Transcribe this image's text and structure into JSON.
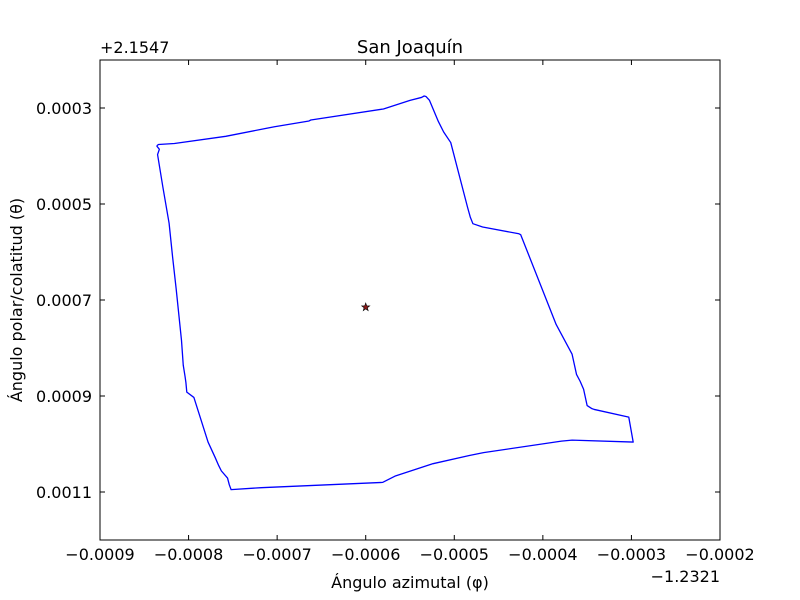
{
  "chart_data": {
    "type": "line",
    "title": "San Joaquín",
    "xlabel": "Ángulo azimutal (φ)",
    "ylabel": "Ángulo polar/colatitud (θ)",
    "x_offset_label": "−1.2321",
    "y_offset_label": "+2.1547",
    "xlim": [
      -0.0009,
      -0.0002
    ],
    "ylim": [
      0.0012,
      0.0002
    ],
    "y_inverted": true,
    "x_ticks": [
      -0.0009,
      -0.0008,
      -0.0007,
      -0.0006,
      -0.0005,
      -0.0004,
      -0.0003,
      -0.0002
    ],
    "x_tick_labels": [
      "−0.0009",
      "−0.0008",
      "−0.0007",
      "−0.0006",
      "−0.0005",
      "−0.0004",
      "−0.0003",
      "−0.0002"
    ],
    "y_ticks": [
      0.0003,
      0.0005,
      0.0007,
      0.0009,
      0.0011
    ],
    "y_tick_labels": [
      "0.0003",
      "0.0005",
      "0.0007",
      "0.0009",
      "0.0011"
    ],
    "grid": false,
    "colors": {
      "boundary": "#0000ff",
      "marker": "#8b1a1a"
    },
    "series": [
      {
        "marker": "line",
        "x": [
          -0.000836,
          -0.000834,
          -0.000816,
          -0.000758,
          -0.000703,
          -0.000664,
          -0.000662,
          -0.00058,
          -0.00055,
          -0.000537,
          -0.000534,
          -0.000532,
          -0.000531,
          -0.000528,
          -0.000518,
          -0.000512,
          -0.000504,
          -0.000485,
          -0.000482,
          -0.000479,
          -0.000468,
          -0.000427,
          -0.000425,
          -0.000385,
          -0.000367,
          -0.000362,
          -0.000358,
          -0.000354,
          -0.00035,
          -0.000345,
          -0.000342,
          -0.000303,
          -0.000298,
          -0.000367,
          -0.000379,
          -0.000467,
          -0.000483,
          -0.000524,
          -0.000567,
          -0.000581,
          -0.000718,
          -0.000752,
          -0.000754,
          -0.000756,
          -0.000763,
          -0.000766,
          -0.00077,
          -0.000778,
          -0.000794,
          -0.000802,
          -0.000803,
          -0.000804,
          -0.000806,
          -0.000808,
          -0.000814,
          -0.000818,
          -0.000822,
          -0.000829,
          -0.000835,
          -0.000833,
          -0.000836
        ],
        "y": [
          0.000379,
          0.000376,
          0.000374,
          0.000359,
          0.000339,
          0.000327,
          0.000325,
          0.000302,
          0.000284,
          0.000278,
          0.000275,
          0.000276,
          0.000278,
          0.000284,
          0.000328,
          0.00035,
          0.000372,
          0.000507,
          0.000527,
          0.000541,
          0.000548,
          0.000562,
          0.000564,
          0.000751,
          0.000813,
          0.000855,
          0.000869,
          0.000886,
          0.00092,
          0.000926,
          0.000928,
          0.000944,
          0.000996,
          0.000992,
          0.000994,
          0.001018,
          0.001024,
          0.001041,
          0.001067,
          0.00108,
          0.001091,
          0.001095,
          0.001085,
          0.001071,
          0.001056,
          0.001045,
          0.001028,
          0.000996,
          0.000903,
          0.000892,
          0.000872,
          0.000859,
          0.000836,
          0.000784,
          0.000677,
          0.000611,
          0.00054,
          0.000465,
          0.000397,
          0.000386,
          0.000379
        ]
      },
      {
        "marker": "star",
        "x": [
          -0.0006
        ],
        "y": [
          0.000715
        ]
      }
    ]
  }
}
